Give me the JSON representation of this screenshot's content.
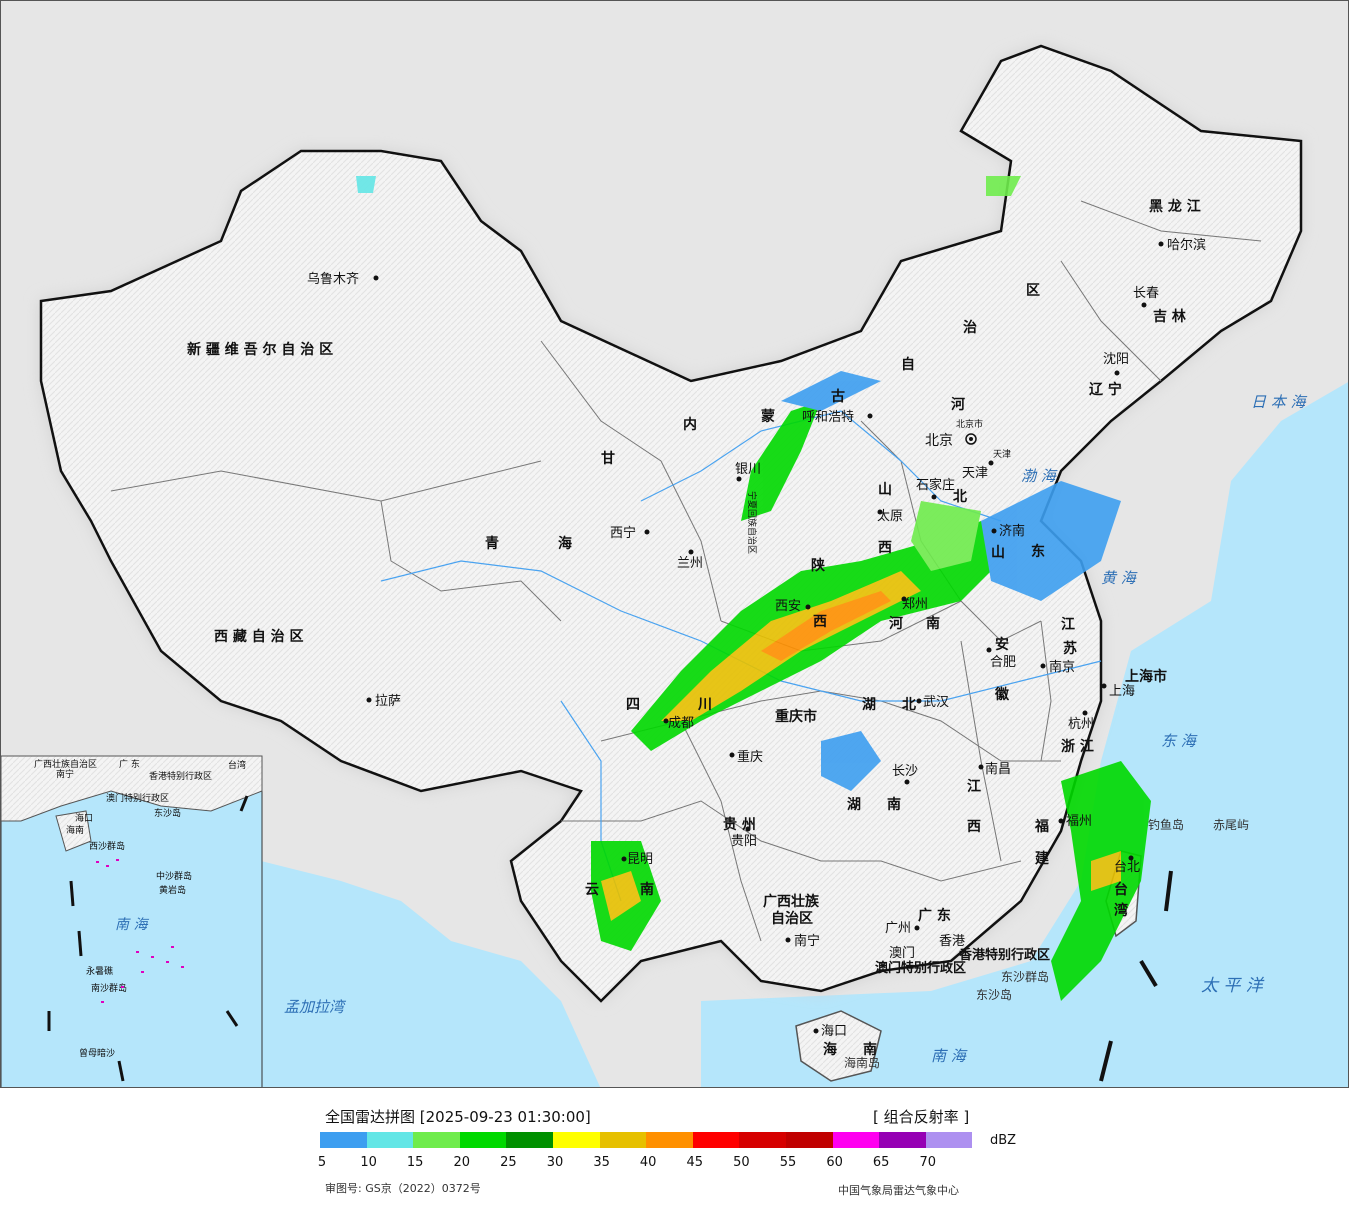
{
  "legend": {
    "title": "全国雷达拼图 [2025-09-23 01:30:00]",
    "product": "[ 组合反射率 ]",
    "unit": "dBZ",
    "approval": "审图号: GS京（2022）0372号",
    "credit": "中国气象局雷达气象中心",
    "colors": [
      "#3d9ef0",
      "#63e6e6",
      "#6fec4c",
      "#00d900",
      "#009000",
      "#ffff00",
      "#e6c000",
      "#ff9000",
      "#ff0000",
      "#d60000",
      "#c00000",
      "#ff00f0",
      "#9600b4",
      "#ad90f0"
    ],
    "ticks": [
      "5",
      "10",
      "15",
      "20",
      "25",
      "30",
      "35",
      "40",
      "45",
      "50",
      "55",
      "60",
      "65",
      "70"
    ]
  },
  "provinces": {
    "xinjiang": "新 疆 维 吾 尔 自 治 区",
    "xizang": "西 藏 自 治 区",
    "qinghai_1": "青",
    "qinghai_2": "海",
    "gansu": "甘",
    "neimenggu_1": "内",
    "neimenggu_2": "蒙",
    "neimenggu_3": "古",
    "neimenggu_4": "自",
    "neimenggu_5": "治",
    "neimenggu_6": "区",
    "heilongjiang": "黑 龙 江",
    "jilin": "吉 林",
    "liaoning": "辽 宁",
    "hebei_1": "河",
    "hebei_2": "北",
    "shanxi_1": "山",
    "shanxi_2": "西",
    "shandong_1": "山",
    "shandong_2": "东",
    "henan_1": "河",
    "henan_2": "南",
    "shaanxi_1": "陕",
    "shaanxi_2": "西",
    "ningxia": "宁夏回族自治区",
    "sichuan_1": "四",
    "sichuan_2": "川",
    "chongqing": "重庆市",
    "hubei_1": "湖",
    "hubei_2": "北",
    "hunan_1": "湖",
    "hunan_2": "南",
    "anhui_1": "安",
    "anhui_2": "徽",
    "jiangsu_1": "江",
    "jiangsu_2": "苏",
    "zhejiang": "浙 江",
    "jiangxi_1": "江",
    "jiangxi_2": "西",
    "fujian_1": "福",
    "fujian_2": "建",
    "guizhou": "贵 州",
    "yunnan_1": "云",
    "yunnan_2": "南",
    "guangxi_1": "广西壮族",
    "guangxi_2": "自治区",
    "guangdong": "广 东",
    "hainan_1": "海",
    "hainan_2": "南",
    "taiwan_1": "台",
    "taiwan_2": "湾",
    "shanghai": "上海市",
    "hk": "香港特别行政区",
    "macau": "澳门特别行政区"
  },
  "cities": {
    "urumqi": "乌鲁木齐",
    "lhasa": "拉萨",
    "xining": "西宁",
    "lanzhou": "兰州",
    "yinchuan": "银川",
    "hohhot": "呼和浩特",
    "beijing": "北京",
    "beijing_shi": "北京市",
    "tianjin": "天津",
    "tianjin_shi": "天津",
    "shijiazhuang": "石家庄",
    "taiyuan": "太原",
    "jinan": "济南",
    "zhengzhou": "郑州",
    "xian": "西安",
    "chengdu": "成都",
    "chongqing": "重庆",
    "wuhan": "武汉",
    "hefei": "合肥",
    "nanjing": "南京",
    "shanghai": "上海",
    "hangzhou": "杭州",
    "nanchang": "南昌",
    "changsha": "长沙",
    "guiyang": "贵阳",
    "kunming": "昆明",
    "nanning": "南宁",
    "guangzhou": "广州",
    "macau": "澳门",
    "hongkong": "香港",
    "fuzhou": "福州",
    "taipei": "台北",
    "haikou": "海口",
    "shenyang": "沈阳",
    "changchun": "长春",
    "harbin": "哈尔滨"
  },
  "seas": {
    "bohai": "渤 海",
    "huanghai": "黄 海",
    "donghai": "东 海",
    "nanhai": "南 海",
    "taipingyang": "太 平 洋",
    "riben": "日 本 海",
    "mengjiala": "孟加拉湾"
  },
  "islands": {
    "diaoyu": "钓鱼岛",
    "chiwei": "赤尾屿",
    "dongsha_qd": "东沙群岛",
    "dongsha": "东沙岛",
    "hainan_dao": "海南岛"
  },
  "inset": {
    "guangdong": "广 东",
    "taiwan": "台湾",
    "guangxi": "广西壮族自治区",
    "nanning": "南宁",
    "hk": "香港特别行政区",
    "macau": "澳门特别行政区",
    "haikou": "海口",
    "hainan": "海南",
    "xisha": "西沙群岛",
    "zhongsha": "中沙群岛",
    "huangyan": "黄岩岛",
    "nanhai": "南 海",
    "nansha": "南沙群岛",
    "zengmu": "曾母暗沙",
    "dongsha": "东沙岛",
    "yongshu": "永暑礁"
  }
}
